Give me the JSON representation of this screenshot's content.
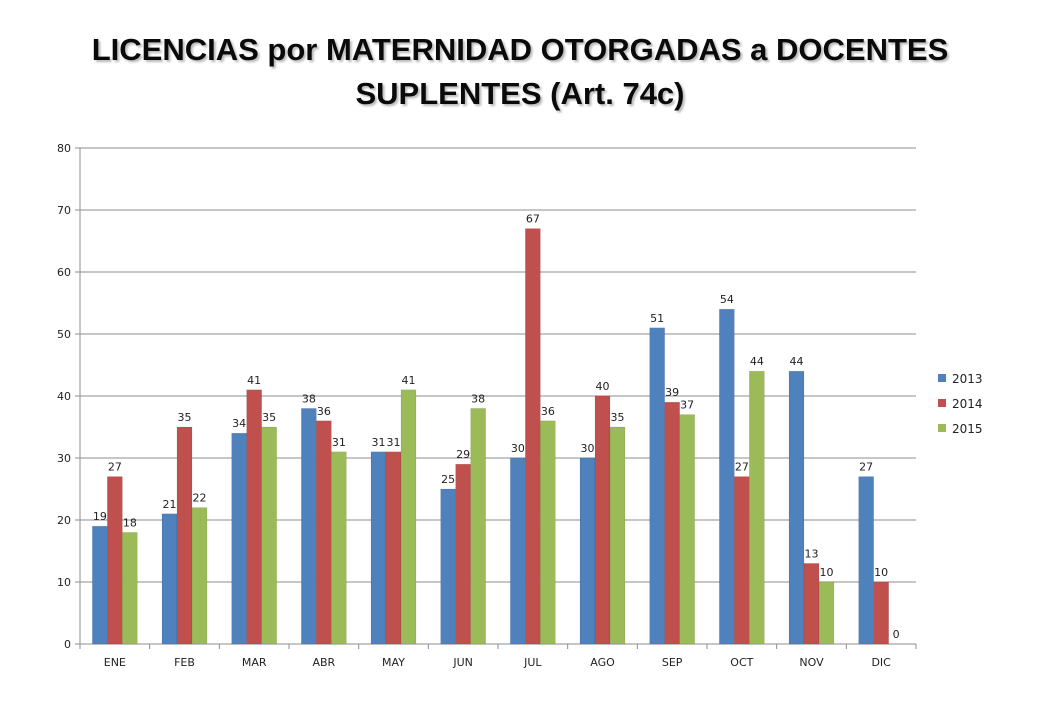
{
  "chart_data": {
    "type": "bar",
    "title_lines": [
      "LICENCIAS por MATERNIDAD  OTORGADAS a DOCENTES",
      "SUPLENTES (Art. 74c)"
    ],
    "categories": [
      "ENE",
      "FEB",
      "MAR",
      "ABR",
      "MAY",
      "JUN",
      "JUL",
      "AGO",
      "SEP",
      "OCT",
      "NOV",
      "DIC"
    ],
    "series": [
      {
        "name": "2013",
        "color": "#4f81bd",
        "values": [
          19,
          21,
          34,
          38,
          31,
          25,
          30,
          30,
          51,
          54,
          44,
          27
        ]
      },
      {
        "name": "2014",
        "color": "#c0504d",
        "values": [
          27,
          35,
          41,
          36,
          31,
          29,
          67,
          40,
          39,
          27,
          13,
          10
        ]
      },
      {
        "name": "2015",
        "color": "#9bbb59",
        "values": [
          18,
          22,
          35,
          31,
          41,
          38,
          36,
          35,
          37,
          44,
          10,
          0
        ]
      }
    ],
    "ylim": [
      0,
      80
    ],
    "yticks": [
      0,
      10,
      20,
      30,
      40,
      50,
      60,
      70,
      80
    ],
    "grid": true,
    "legend_position": "right"
  }
}
